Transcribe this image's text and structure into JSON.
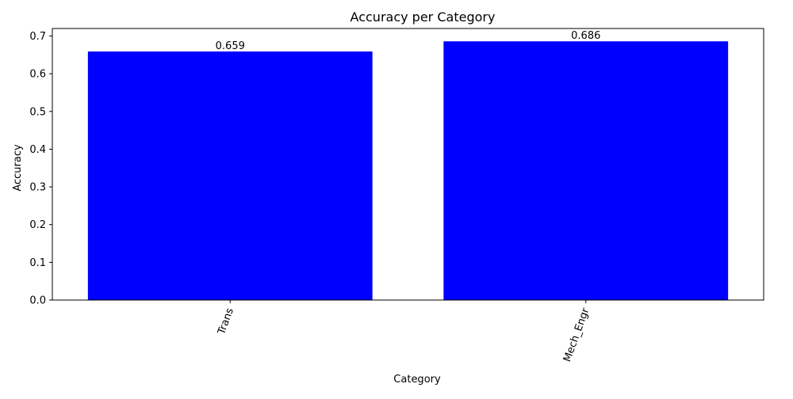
{
  "chart_data": {
    "type": "bar",
    "title": "Accuracy per Category",
    "xlabel": "Category",
    "ylabel": "Accuracy",
    "categories": [
      "Trans",
      "Mech_Engr"
    ],
    "values": [
      0.659,
      0.686
    ],
    "data_labels": [
      "0.659",
      "0.686"
    ],
    "ylim": [
      0,
      0.72
    ],
    "yticks": [
      0.0,
      0.1,
      0.2,
      0.3,
      0.4,
      0.5,
      0.6,
      0.7
    ],
    "ytick_labels": [
      "0.0",
      "0.1",
      "0.2",
      "0.3",
      "0.4",
      "0.5",
      "0.6",
      "0.7"
    ],
    "xtick_rotation_deg": 70,
    "bar_color": "#0000ff",
    "grid": false,
    "legend": "none"
  }
}
